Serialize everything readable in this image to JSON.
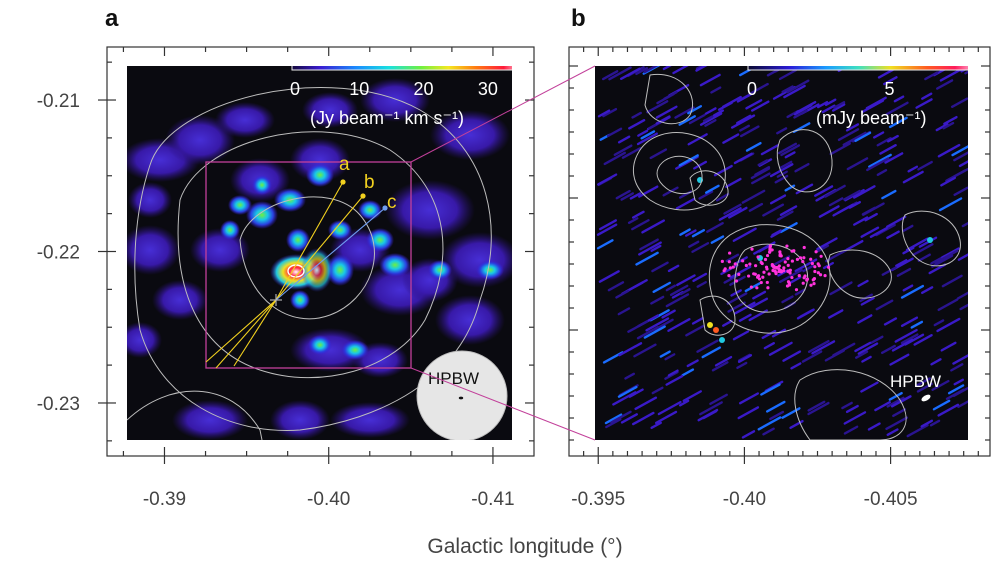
{
  "figure": {
    "xlabel": "Galactic longitude (°)"
  },
  "colors": {
    "frame": "#333333",
    "map_background": "#0a0a10",
    "contour": "#bdbdbd",
    "box": "#c2409a",
    "source_marker": "#f2d11f",
    "maser": "#ff33dd"
  },
  "chart_data": [
    {
      "type": "heatmap",
      "panel": "a",
      "xlabel": "Galactic longitude (°)",
      "ylabel": "",
      "xlim": [
        -0.3865,
        -0.4125
      ],
      "ylim": [
        -0.2335,
        -0.2065
      ],
      "x_ticks": [
        -0.39,
        -0.4,
        -0.41
      ],
      "x_tick_labels": [
        "-0.39",
        "-0.40",
        "-0.41"
      ],
      "y_ticks": [
        -0.21,
        -0.22,
        -0.23
      ],
      "y_tick_labels": [
        "-0.21",
        "-0.22",
        "-0.23"
      ],
      "colorbar": {
        "ticks": [
          0,
          10,
          20,
          30
        ],
        "tick_labels": [
          "0",
          "10",
          "20",
          "30"
        ],
        "unit": "(Jy beam⁻¹ km s⁻¹)"
      },
      "sources": [
        {
          "label": "a",
          "l": -0.4036,
          "b": -0.2148
        },
        {
          "label": "b",
          "l": -0.405,
          "b": -0.216
        },
        {
          "label": "c",
          "l": -0.4068,
          "b": -0.217
        }
      ],
      "zoom_box": {
        "l": [
          -0.396,
          -0.4085
        ],
        "b": [
          -0.214,
          -0.228
        ]
      },
      "beam_label": "HPBW"
    },
    {
      "type": "heatmap",
      "panel": "b",
      "xlabel": "Galactic longitude (°)",
      "xlim": [
        -0.394,
        -0.4084
      ],
      "x_ticks": [
        -0.395,
        -0.4,
        -0.405
      ],
      "x_tick_labels": [
        "-0.395",
        "-0.40",
        "-0.405"
      ],
      "colorbar": {
        "ticks": [
          0,
          5
        ],
        "tick_labels": [
          "0",
          "5"
        ],
        "unit": "(mJy beam⁻¹)"
      },
      "beam_label": "HPBW"
    }
  ]
}
